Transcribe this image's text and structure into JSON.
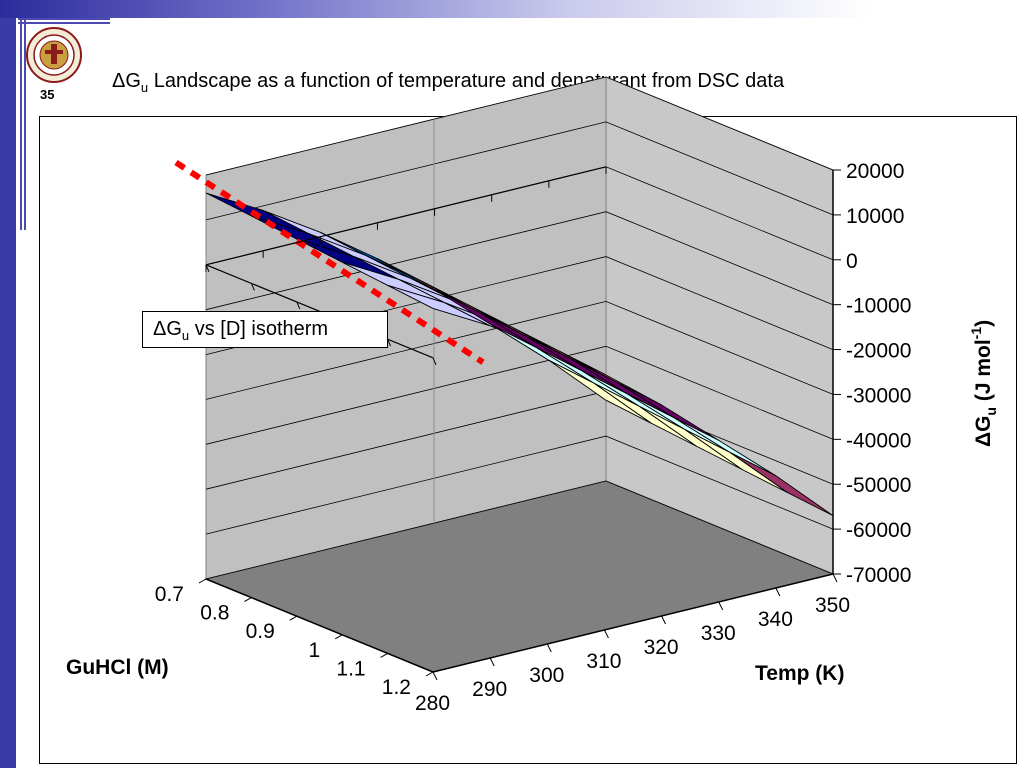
{
  "slide": {
    "number": "35",
    "title_prefix": "ΔG",
    "title_sub": "u",
    "title_rest": " Landscape as a function of temperature and denaturant from DSC data"
  },
  "callout": {
    "prefix": "ΔG",
    "sub": "u",
    "rest": " vs [D] isotherm"
  },
  "colors": {
    "sidebar": "#3a3aa8",
    "isotherm_line": "#ff0000",
    "floor": "#808080",
    "walls": "#c0c0c0"
  },
  "chart_data": {
    "type": "surface",
    "title": "",
    "x_axis": {
      "label": "Temp (K)",
      "ticks": [
        "280",
        "290",
        "300",
        "310",
        "320",
        "330",
        "340",
        "350"
      ],
      "range": [
        280,
        350
      ]
    },
    "y_axis": {
      "label": "GuHCl (M)",
      "ticks": [
        "0.7",
        "0.8",
        "0.9",
        "1",
        "1.1",
        "1.2"
      ],
      "range": [
        0.7,
        1.2
      ]
    },
    "z_axis": {
      "label_prefix": "ΔG",
      "label_sub": "u",
      "label_rest": " (J mol",
      "label_sup": "-1",
      "label_end": ")",
      "ticks": [
        "20000",
        "10000",
        "0",
        "-10000",
        "-20000",
        "-30000",
        "-40000",
        "-50000",
        "-60000",
        "-70000"
      ],
      "range": [
        -70000,
        20000
      ]
    },
    "color_bands": [
      {
        "range": [
          10000,
          20000
        ],
        "color": "#000080"
      },
      {
        "range": [
          0,
          10000
        ],
        "color": "#ccccff"
      },
      {
        "range": [
          -10000,
          0
        ],
        "color": "#0066cc"
      },
      {
        "range": [
          -20000,
          -10000
        ],
        "color": "#ff8080"
      },
      {
        "range": [
          -30000,
          -20000
        ],
        "color": "#660066"
      },
      {
        "range": [
          -40000,
          -30000
        ],
        "color": "#ccffff"
      },
      {
        "range": [
          -50000,
          -40000
        ],
        "color": "#ffffcc"
      },
      {
        "range": [
          -60000,
          -50000
        ],
        "color": "#993366"
      }
    ],
    "temps": [
      280,
      290,
      300,
      310,
      320,
      330,
      340,
      350
    ],
    "guhcl": [
      0.7,
      0.8,
      0.9,
      1.0,
      1.1,
      1.2
    ],
    "dG": [
      [
        16000,
        9000,
        1000,
        -8000,
        -18000,
        -29000,
        -40000,
        -52000
      ],
      [
        15000,
        8000,
        0,
        -9000,
        -19000,
        -30000,
        -41000,
        -53000
      ],
      [
        14000,
        7000,
        -1000,
        -10000,
        -20000,
        -31000,
        -42000,
        -54000
      ],
      [
        13000,
        6000,
        -2000,
        -11000,
        -21000,
        -32000,
        -43000,
        -55000
      ],
      [
        12000,
        5000,
        -3000,
        -12000,
        -22000,
        -33000,
        -44000,
        -56000
      ],
      [
        11000,
        4000,
        -4000,
        -13000,
        -23000,
        -34000,
        -45000,
        -57000
      ]
    ],
    "grid": true,
    "legend": "none"
  }
}
